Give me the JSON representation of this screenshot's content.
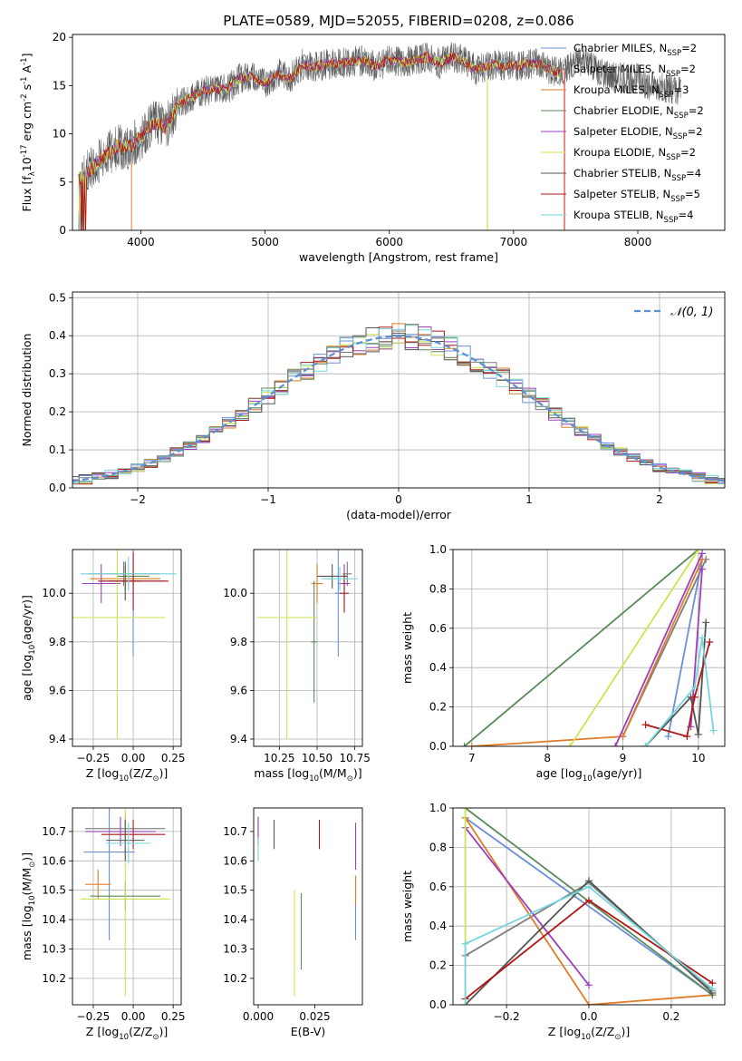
{
  "figure": {
    "title": "PLATE=0589, MJD=52055, FIBERID=0208, z=0.086"
  },
  "series_styles": [
    {
      "name": "Chabrier MILES, N$_{SSP}$=2",
      "color": "#6a8fd6"
    },
    {
      "name": "Salpeter MILES, N$_{SSP}$=2",
      "color": "#7d7d7d"
    },
    {
      "name": "Kroupa MILES, N$_{SSP}$=3",
      "color": "#e07b27"
    },
    {
      "name": "Chabrier ELODIE, N$_{SSP}$=2",
      "color": "#5a8a5a"
    },
    {
      "name": "Salpeter ELODIE, N$_{SSP}$=2",
      "color": "#9c3fbf"
    },
    {
      "name": "Kroupa ELODIE, N$_{SSP}$=2",
      "color": "#cde34f"
    },
    {
      "name": "Chabrier STELIB, N$_{SSP}$=4",
      "color": "#555555"
    },
    {
      "name": "Salpeter STELIB, N$_{SSP}$=5",
      "color": "#b01717"
    },
    {
      "name": "Kroupa STELIB, N$_{SSP}$=4",
      "color": "#74d6dc"
    }
  ],
  "chart_data": [
    {
      "id": "spectrum",
      "type": "line",
      "xlabel": "wavelength [Angstrom, rest frame]",
      "ylabel": "Flux [f$_\\lambda$10$^{-17}$ erg cm$^{-2}$ s$^{-1}$ A$^{-1}$]",
      "xlim": [
        3450,
        8700
      ],
      "ylim": [
        0,
        20.3
      ],
      "xticks": [
        4000,
        5000,
        6000,
        7000,
        8000
      ],
      "yticks": [
        0,
        5,
        10,
        15,
        20
      ],
      "legend": "upper right",
      "grid": false,
      "envelope_x": [
        3500,
        3600,
        3700,
        3800,
        3900,
        4000,
        4100,
        4200,
        4300,
        4400,
        4500,
        4600,
        4700,
        4800,
        4900,
        5000,
        5100,
        5200,
        5300,
        5400,
        5500,
        5600,
        5700,
        5800,
        5900,
        6000,
        6100,
        6200,
        6300,
        6400,
        6500,
        6600,
        6700,
        6800,
        6900,
        7000,
        7100,
        7200,
        7300,
        7400,
        7500,
        7600,
        7700,
        7800,
        7900,
        8000,
        8100,
        8200,
        8300
      ],
      "envelope_y": [
        5.2,
        6.3,
        7.5,
        8.6,
        8.6,
        9.6,
        11.2,
        10.7,
        13.0,
        13.8,
        14.4,
        14.6,
        14.7,
        15.8,
        16.0,
        15.2,
        16.3,
        15.8,
        17.2,
        17.0,
        17.2,
        17.3,
        17.5,
        17.6,
        16.9,
        17.7,
        17.4,
        17.6,
        18.0,
        17.3,
        18.0,
        17.6,
        16.6,
        17.1,
        17.1,
        17.0,
        17.2,
        17.3,
        16.6,
        16.3,
        17.5,
        17.6,
        16.3,
        15.9,
        15.8,
        15.7,
        15.0,
        14.9,
        14.6
      ]
    },
    {
      "id": "residuals",
      "type": "line",
      "xlabel": "(data-model)/error",
      "ylabel": "Normed distribution",
      "xlim": [
        -2.5,
        2.5
      ],
      "ylim": [
        0,
        0.515
      ],
      "xticks": [
        -2,
        -1,
        0,
        1,
        2
      ],
      "yticks": [
        0.0,
        0.1,
        0.2,
        0.3,
        0.4,
        0.5
      ],
      "grid": true,
      "legend": "upper right",
      "reference_label": "$\\mathcal{N}(0,1)$",
      "reference_color": "#5b8fd6"
    },
    {
      "id": "age_vs_Z",
      "type": "scatter",
      "xlabel": "Z [log$_{10}$(Z/Z$_\\odot$)]",
      "ylabel": "age  [log$_{10}$(age/yr)]",
      "xlim": [
        -0.38,
        0.3
      ],
      "ylim": [
        9.37,
        10.18
      ],
      "xticks": [
        -0.25,
        0.0,
        0.25
      ],
      "yticks": [
        9.4,
        9.6,
        9.8,
        10.0
      ],
      "grid": true,
      "points": [
        {
          "s": 0,
          "x": 0.0,
          "xerr": 0.2,
          "y": 10.05,
          "yerr": 0.31
        },
        {
          "s": 1,
          "x": -0.06,
          "xerr": 0.22,
          "y": 10.08,
          "yerr": 0.05
        },
        {
          "s": 2,
          "x": -0.05,
          "xerr": 0.22,
          "y": 10.06,
          "yerr": 0.05
        },
        {
          "s": 3,
          "x": 0.0,
          "xerr": 0.1,
          "y": 10.07,
          "yerr": 0.05
        },
        {
          "s": 4,
          "x": -0.2,
          "xerr": 0.12,
          "y": 10.04,
          "yerr": 0.08
        },
        {
          "s": 5,
          "x": -0.1,
          "xerr": 0.3,
          "y": 9.9,
          "yerr": 0.5
        },
        {
          "s": 6,
          "x": -0.05,
          "xerr": 0.1,
          "y": 10.05,
          "yerr": 0.08
        },
        {
          "s": 7,
          "x": 0.0,
          "xerr": 0.22,
          "y": 10.05,
          "yerr": 0.12
        },
        {
          "s": 8,
          "x": -0.03,
          "xerr": 0.3,
          "y": 10.08,
          "yerr": 0.07
        }
      ]
    },
    {
      "id": "age_vs_mass",
      "type": "scatter",
      "xlabel": "mass [log$_{10}$(M/M$_\\odot$)]",
      "ylabel": "",
      "xlim": [
        10.08,
        10.8
      ],
      "ylim": [
        9.37,
        10.18
      ],
      "xticks": [
        10.25,
        10.5,
        10.75
      ],
      "yticks": [
        9.4,
        9.6,
        9.8,
        10.0
      ],
      "grid": true,
      "points": [
        {
          "s": 0,
          "x": 10.64,
          "xerr": 0.02,
          "y": 10.0,
          "yerr": 0.26
        },
        {
          "s": 1,
          "x": 10.7,
          "xerr": 0.03,
          "y": 10.08,
          "yerr": 0.05
        },
        {
          "s": 2,
          "x": 10.5,
          "xerr": 0.04,
          "y": 10.04,
          "yerr": 0.08
        },
        {
          "s": 3,
          "x": 10.48,
          "xerr": 0.02,
          "y": 9.8,
          "yerr": 0.25
        },
        {
          "s": 4,
          "x": 10.68,
          "xerr": 0.04,
          "y": 10.04,
          "yerr": 0.08
        },
        {
          "s": 5,
          "x": 10.3,
          "xerr": 0.2,
          "y": 9.9,
          "yerr": 0.5
        },
        {
          "s": 6,
          "x": 10.6,
          "xerr": 0.1,
          "y": 10.07,
          "yerr": 0.05
        },
        {
          "s": 7,
          "x": 10.68,
          "xerr": 0.03,
          "y": 10.0,
          "yerr": 0.08
        },
        {
          "s": 8,
          "x": 10.65,
          "xerr": 0.12,
          "y": 10.06,
          "yerr": 0.05
        }
      ]
    },
    {
      "id": "massweight_vs_age",
      "type": "line",
      "xlabel": "age  [log$_{10}$(age/yr)]",
      "ylabel": "mass weight",
      "xlim": [
        6.75,
        10.35
      ],
      "ylim": [
        0,
        1.0
      ],
      "xticks": [
        7,
        8,
        9,
        10
      ],
      "yticks": [
        0.0,
        0.2,
        0.4,
        0.6,
        0.8,
        1.0
      ],
      "grid": true,
      "series": [
        {
          "s": 0,
          "x": [
            9.6,
            10.05
          ],
          "y": [
            0.05,
            0.95
          ]
        },
        {
          "s": 1,
          "x": [
            9.0,
            10.1
          ],
          "y": [
            0.05,
            0.95
          ]
        },
        {
          "s": 2,
          "x": [
            7.0,
            9.0,
            10.05
          ],
          "y": [
            0.0,
            0.05,
            0.95
          ]
        },
        {
          "s": 3,
          "x": [
            6.9,
            10.0
          ],
          "y": [
            0.0,
            1.0
          ]
        },
        {
          "s": 4,
          "x": [
            9.9,
            10.05
          ],
          "y": [
            0.1,
            0.9
          ]
        },
        {
          "s": 5,
          "x": [
            8.3,
            10.0
          ],
          "y": [
            0.0,
            1.0
          ]
        },
        {
          "s": 6,
          "x": [
            9.3,
            9.9,
            10.0,
            10.1
          ],
          "y": [
            0.0,
            0.25,
            0.06,
            0.63
          ]
        },
        {
          "s": 7,
          "x": [
            9.3,
            9.85,
            9.95,
            10.15
          ],
          "y": [
            0.11,
            0.05,
            0.25,
            0.53
          ]
        },
        {
          "s": 8,
          "x": [
            9.3,
            9.95,
            10.05,
            10.2
          ],
          "y": [
            0.0,
            0.3,
            0.55,
            0.08
          ]
        },
        {
          "s": 4,
          "x": [
            8.9,
            10.05
          ],
          "y": [
            0.0,
            0.98
          ]
        }
      ]
    },
    {
      "id": "mass_vs_Z",
      "type": "scatter",
      "xlabel": "Z [log$_{10}$(Z/Z$_\\odot$)]",
      "ylabel": "mass [log$_{10}$(M/M$_\\odot$)]",
      "xlim": [
        -0.38,
        0.3
      ],
      "ylim": [
        10.11,
        10.78
      ],
      "xticks": [
        -0.25,
        0.0,
        0.25
      ],
      "yticks": [
        10.2,
        10.3,
        10.4,
        10.5,
        10.6,
        10.7
      ],
      "grid": true,
      "points": [
        {
          "s": 0,
          "x": -0.15,
          "xerr": 0.16,
          "y": 10.63,
          "yerr": 0.3
        },
        {
          "s": 1,
          "x": -0.05,
          "xerr": 0.25,
          "y": 10.71,
          "yerr": 0.05
        },
        {
          "s": 2,
          "x": -0.22,
          "xerr": 0.08,
          "y": 10.52,
          "yerr": 0.05
        },
        {
          "s": 3,
          "x": -0.05,
          "xerr": 0.22,
          "y": 10.48,
          "yerr": 0.05
        },
        {
          "s": 4,
          "x": -0.08,
          "xerr": 0.22,
          "y": 10.7,
          "yerr": 0.05
        },
        {
          "s": 5,
          "x": -0.05,
          "xerr": 0.28,
          "y": 10.47,
          "yerr": 0.33
        },
        {
          "s": 6,
          "x": -0.05,
          "xerr": 0.12,
          "y": 10.67,
          "yerr": 0.07
        },
        {
          "s": 7,
          "x": 0.0,
          "xerr": 0.2,
          "y": 10.69,
          "yerr": 0.05
        },
        {
          "s": 8,
          "x": -0.03,
          "xerr": 0.14,
          "y": 10.66,
          "yerr": 0.07
        }
      ]
    },
    {
      "id": "mass_vs_ebv",
      "type": "scatter",
      "xlabel": "E(B-V)",
      "ylabel": "",
      "xlim": [
        -0.002,
        0.046
      ],
      "ylim": [
        10.11,
        10.78
      ],
      "xticks": [
        0.0,
        0.025
      ],
      "yticks": [
        10.2,
        10.3,
        10.4,
        10.5,
        10.6,
        10.7
      ],
      "grid": false,
      "points": [
        {
          "s": 0,
          "x": 0.043,
          "xerr": 0,
          "y": 10.43,
          "yerr": 0.1
        },
        {
          "s": 1,
          "x": 0.0,
          "xerr": 0,
          "y": 10.7,
          "yerr": 0.05
        },
        {
          "s": 2,
          "x": 0.043,
          "xerr": 0,
          "y": 10.5,
          "yerr": 0.05
        },
        {
          "s": 3,
          "x": 0.019,
          "xerr": 0,
          "y": 10.36,
          "yerr": 0.13
        },
        {
          "s": 4,
          "x": 0.0,
          "xerr": 0,
          "y": 10.7,
          "yerr": 0.05
        },
        {
          "s": 5,
          "x": 0.016,
          "xerr": 0,
          "y": 10.32,
          "yerr": 0.18
        },
        {
          "s": 6,
          "x": 0.007,
          "xerr": 0,
          "y": 10.69,
          "yerr": 0.05
        },
        {
          "s": 7,
          "x": 0.027,
          "xerr": 0,
          "y": 10.69,
          "yerr": 0.05
        },
        {
          "s": 8,
          "x": 0.0,
          "xerr": 0,
          "y": 10.64,
          "yerr": 0.04
        },
        {
          "s": 4,
          "x": 0.043,
          "xerr": 0,
          "y": 10.65,
          "yerr": 0.08
        }
      ]
    },
    {
      "id": "massweight_vs_Z",
      "type": "line",
      "xlabel": "Z [log$_{10}$(Z/Z$_\\odot$)]",
      "ylabel": "mass weight",
      "xlim": [
        -0.33,
        0.33
      ],
      "ylim": [
        0,
        1.0
      ],
      "xticks": [
        -0.2,
        0.0,
        0.2
      ],
      "yticks": [
        0.0,
        0.2,
        0.4,
        0.6,
        0.8,
        1.0
      ],
      "grid": true,
      "series": [
        {
          "s": 0,
          "x": [
            -0.3,
            0.3
          ],
          "y": [
            0.95,
            0.05
          ]
        },
        {
          "s": 1,
          "x": [
            -0.3,
            0.0,
            0.3
          ],
          "y": [
            0.25,
            0.62,
            0.07
          ]
        },
        {
          "s": 2,
          "x": [
            -0.3,
            0.0,
            0.3
          ],
          "y": [
            0.95,
            0.0,
            0.05
          ]
        },
        {
          "s": 3,
          "x": [
            -0.3,
            0.3
          ],
          "y": [
            1.0,
            0.05
          ]
        },
        {
          "s": 4,
          "x": [
            -0.3,
            0.0
          ],
          "y": [
            0.9,
            0.1
          ]
        },
        {
          "s": 5,
          "x": [
            -0.3,
            -0.3
          ],
          "y": [
            0.0,
            1.0
          ]
        },
        {
          "s": 6,
          "x": [
            -0.3,
            0.0,
            0.3
          ],
          "y": [
            0.0,
            0.63,
            0.06
          ]
        },
        {
          "s": 7,
          "x": [
            -0.3,
            0.0,
            0.3
          ],
          "y": [
            0.03,
            0.53,
            0.11
          ]
        },
        {
          "s": 8,
          "x": [
            -0.3,
            -0.3,
            0.0,
            0.3
          ],
          "y": [
            0.0,
            0.31,
            0.6,
            0.08
          ]
        }
      ]
    }
  ]
}
